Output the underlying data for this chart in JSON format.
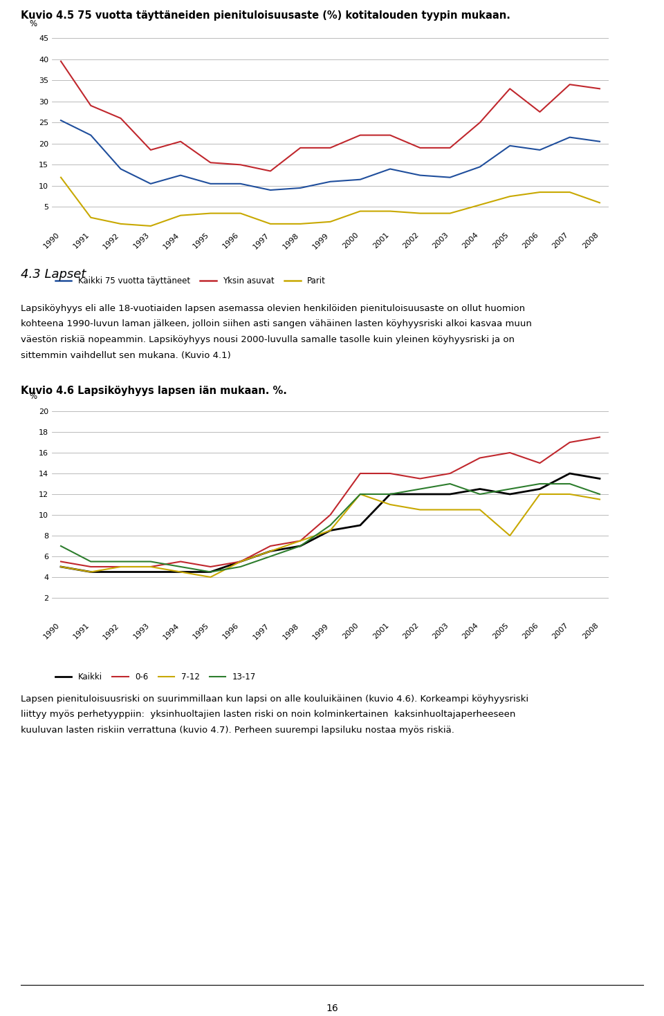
{
  "title1": "Kuvio 4.5 75 vuotta täyttäneiden pienituloisuusaste (%) kotitalouden tyypin mukaan.",
  "chart1": {
    "years": [
      1990,
      1991,
      1992,
      1993,
      1994,
      1995,
      1996,
      1997,
      1998,
      1999,
      2000,
      2001,
      2002,
      2003,
      2004,
      2005,
      2006,
      2007,
      2008
    ],
    "kaikki": [
      25.5,
      22.0,
      14.0,
      10.5,
      12.5,
      10.5,
      10.5,
      9.0,
      9.5,
      11.0,
      11.5,
      14.0,
      12.5,
      12.0,
      14.5,
      19.5,
      18.5,
      21.5,
      20.5
    ],
    "yksin": [
      39.5,
      29.0,
      26.0,
      18.5,
      20.5,
      15.5,
      15.0,
      13.5,
      19.0,
      19.0,
      22.0,
      22.0,
      19.0,
      19.0,
      25.0,
      33.0,
      27.5,
      34.0,
      33.0
    ],
    "parit": [
      12.0,
      2.5,
      1.0,
      0.5,
      3.0,
      3.5,
      3.5,
      1.0,
      1.0,
      1.5,
      4.0,
      4.0,
      3.5,
      3.5,
      5.5,
      7.5,
      8.5,
      8.5,
      6.0
    ],
    "kaikki_color": "#1f4e9c",
    "yksin_color": "#c0272d",
    "parit_color": "#c8a800",
    "ylim": [
      0,
      45
    ],
    "yticks": [
      0,
      5,
      10,
      15,
      20,
      25,
      30,
      35,
      40,
      45
    ],
    "ylabel": "%",
    "legend_labels": [
      "Kaikki 75 vuotta täyttäneet",
      "Yksin asuvat",
      "Parit"
    ]
  },
  "section_heading": "4.3 Lapset",
  "section_text1_lines": [
    "Lapsiköyhyys eli alle 18-vuotiaiden lapsen asemassa olevien henkilöiden pienituloisuusaste on ollut huomion",
    "kohteena 1990-luvun laman jälkeen, jolloin siihen asti sangen vähäinen lasten köyhyysriski alkoi kasvaa muun",
    "väestön riskiä nopeammin. Lapsiköyhyys nousi 2000-luvulla samalle tasolle kuin yleinen köyhyysriski ja on",
    "sittemmin vaihdellut sen mukana. (Kuvio 4.1)"
  ],
  "title2": "Kuvio 4.6 Lapsiköyhyys lapsen iän mukaan. %.",
  "chart2": {
    "years": [
      1990,
      1991,
      1992,
      1993,
      1994,
      1995,
      1996,
      1997,
      1998,
      1999,
      2000,
      2001,
      2002,
      2003,
      2004,
      2005,
      2006,
      2007,
      2008
    ],
    "kaikki": [
      5.0,
      4.5,
      4.5,
      4.5,
      4.5,
      4.5,
      5.5,
      6.5,
      7.0,
      8.5,
      9.0,
      12.0,
      12.0,
      12.0,
      12.5,
      12.0,
      12.5,
      14.0,
      13.5
    ],
    "age_06": [
      5.5,
      5.0,
      5.0,
      5.0,
      5.5,
      5.0,
      5.5,
      7.0,
      7.5,
      10.0,
      14.0,
      14.0,
      13.5,
      14.0,
      15.5,
      16.0,
      15.0,
      17.0,
      17.5
    ],
    "age_712": [
      5.0,
      4.5,
      5.0,
      5.0,
      4.5,
      4.0,
      5.5,
      6.5,
      7.5,
      8.5,
      12.0,
      11.0,
      10.5,
      10.5,
      10.5,
      8.0,
      12.0,
      12.0,
      11.5
    ],
    "age_1317": [
      7.0,
      5.5,
      5.5,
      5.5,
      5.0,
      4.5,
      5.0,
      6.0,
      7.0,
      9.0,
      12.0,
      12.0,
      12.5,
      13.0,
      12.0,
      12.5,
      13.0,
      13.0,
      12.0
    ],
    "kaikki_color": "#000000",
    "age_06_color": "#c0272d",
    "age_712_color": "#c8a800",
    "age_1317_color": "#2d7d2d",
    "ylim": [
      0,
      20
    ],
    "yticks": [
      0,
      2,
      4,
      6,
      8,
      10,
      12,
      14,
      16,
      18,
      20
    ],
    "ylabel": "%",
    "legend_labels": [
      "Kaikki",
      "0-6",
      "7-12",
      "13-17"
    ]
  },
  "section_text2_lines": [
    "Lapsen pienituloisuusriski on suurimmillaan kun lapsi on alle kouluikäinen (kuvio 4.6). Korkeampi köyhyysriski",
    "liittyy myös perhetyyppiin:  yksinhuoltajien lasten riski on noin kolminkertainen  kaksinhuoltajaperheeseen",
    "kuuluvan lasten riskiin verrattuna (kuvio 4.7). Perheen suurempi lapsiluku nostaa myös riskiä."
  ],
  "page_number": "16",
  "bg_color": "#ffffff",
  "text_color": "#000000",
  "grid_color": "#b0b0b0"
}
